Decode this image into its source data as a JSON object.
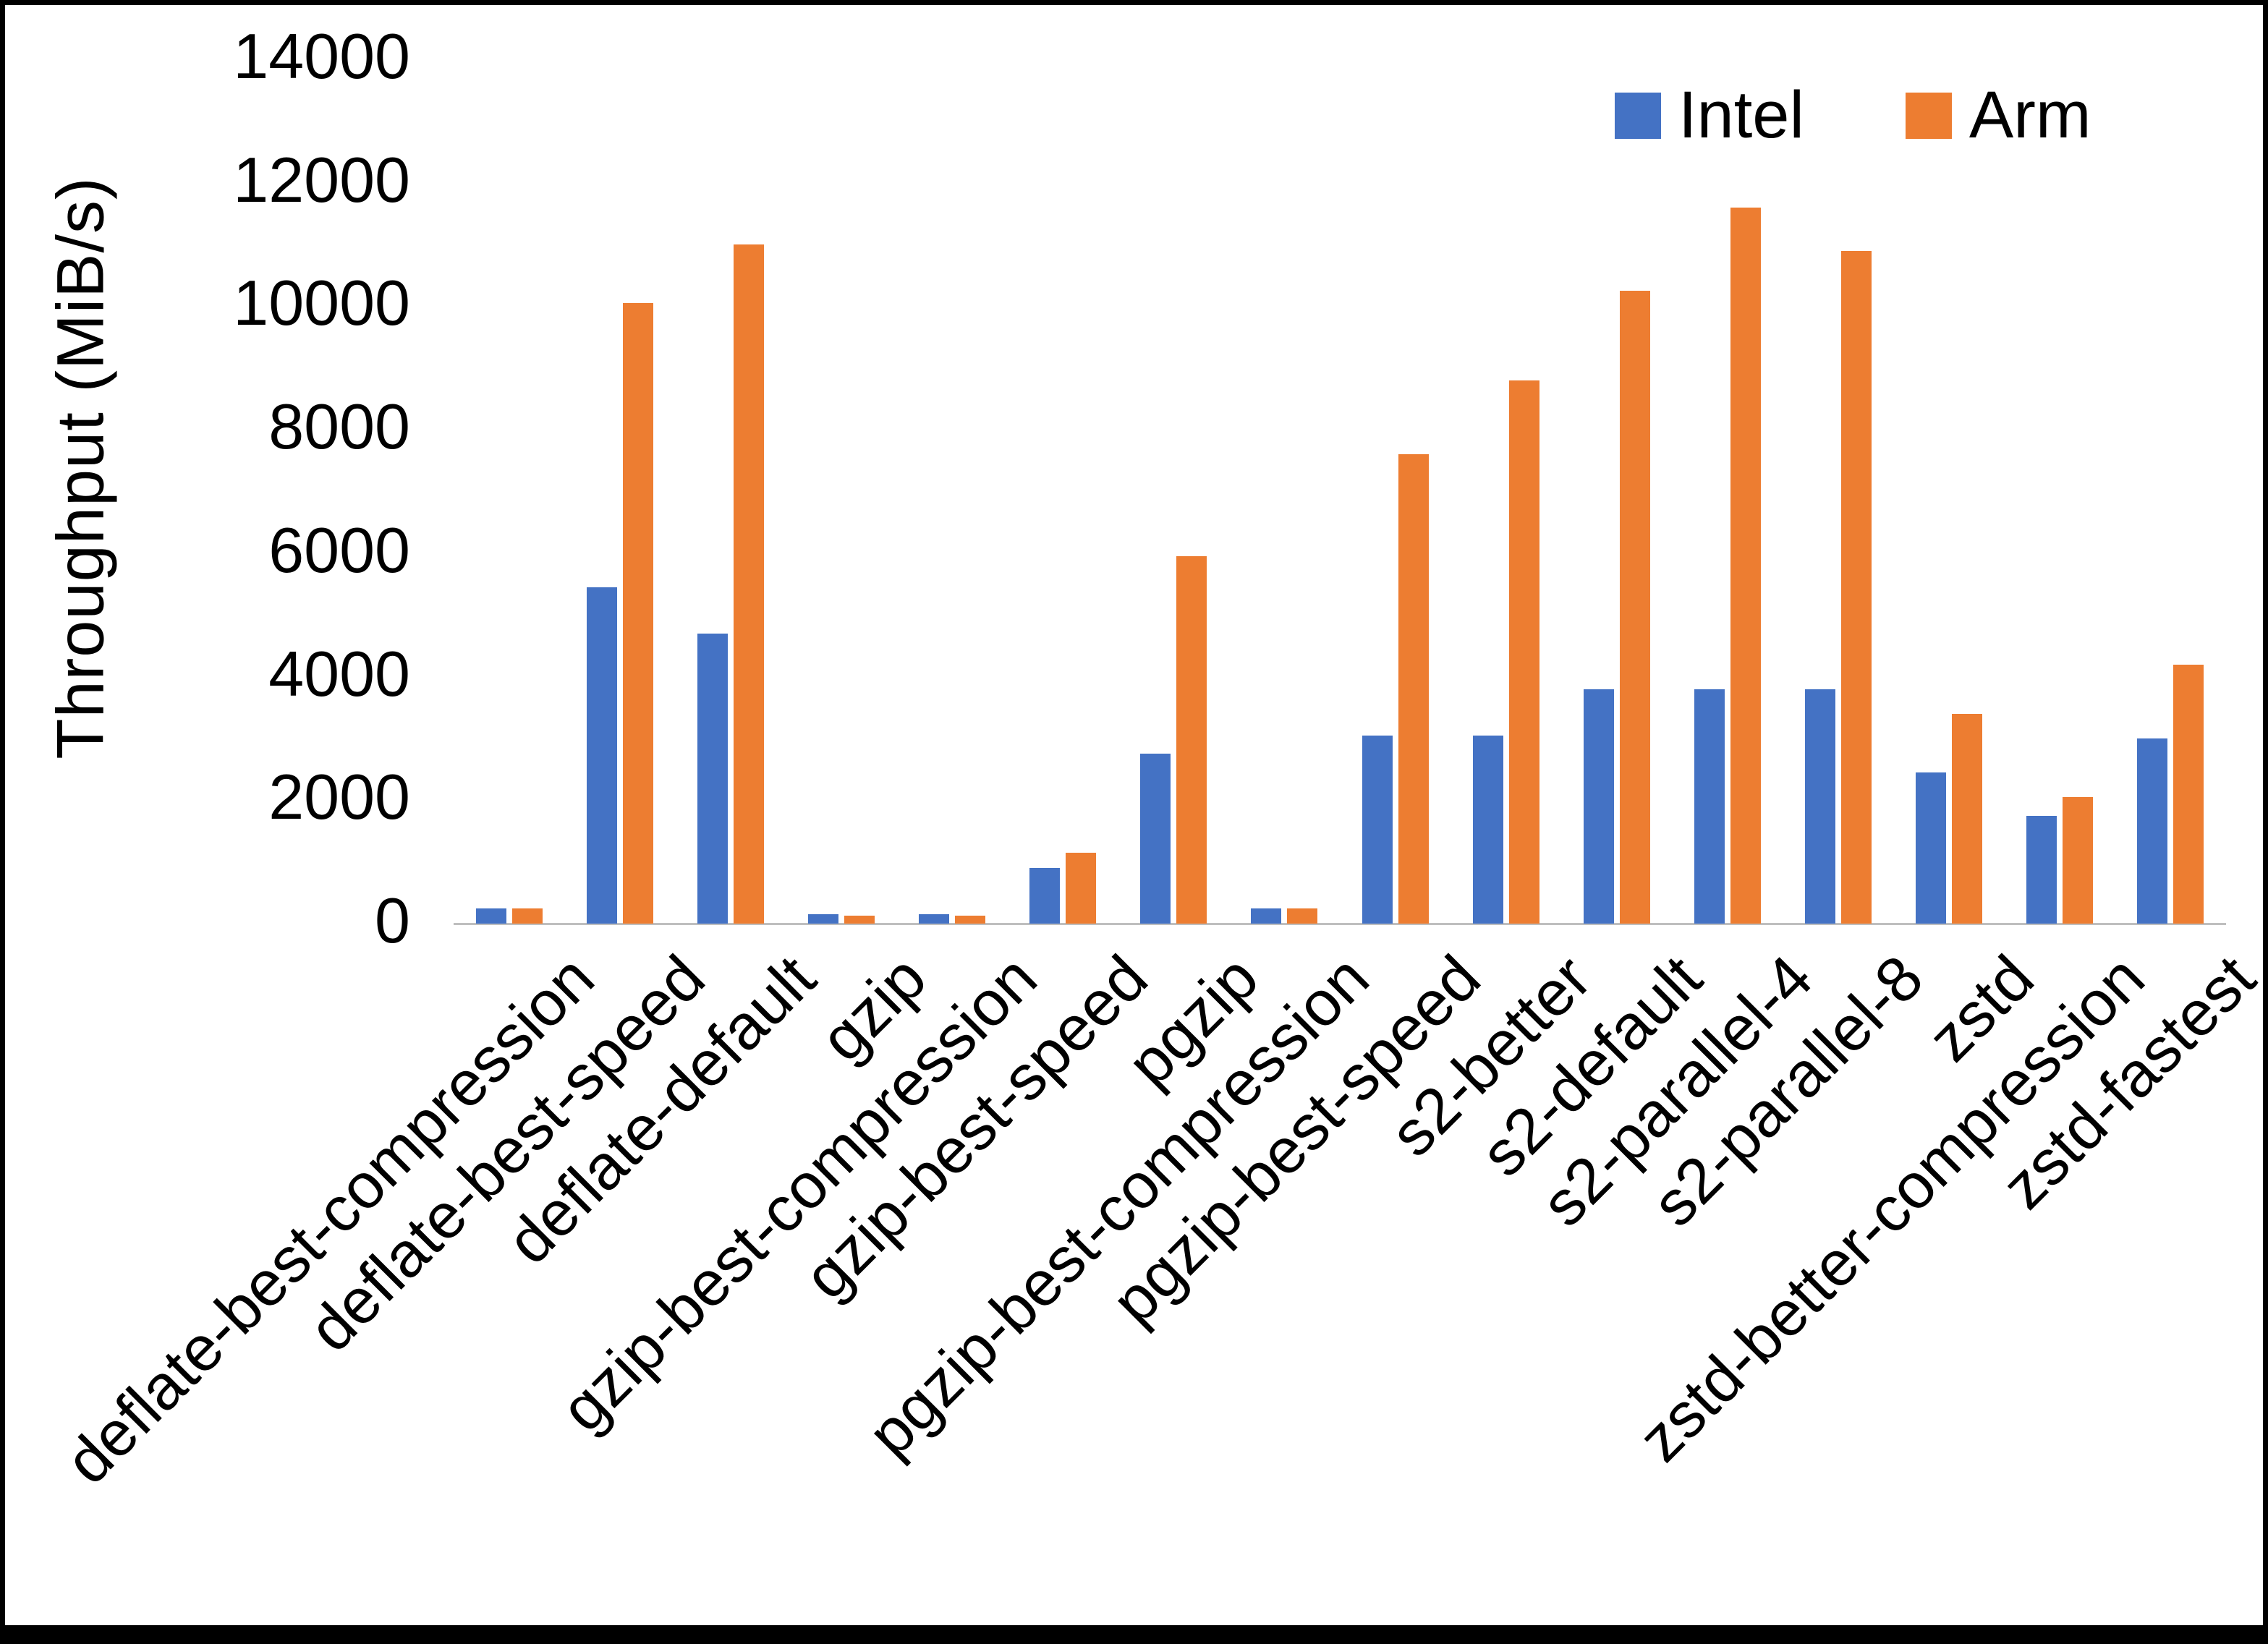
{
  "chart_data": {
    "type": "bar",
    "title": "",
    "xlabel": "",
    "ylabel": "Throughput (MiB/s)",
    "ylim": [
      0,
      14000
    ],
    "ytick_step": 2000,
    "grid": false,
    "legend_position": "top-right",
    "categories": [
      "deflate-best-compression",
      "deflate-best-speed",
      "deflate-default",
      "gzip",
      "gzip-best-compression",
      "gzip-best-speed",
      "pgzip",
      "pgzip-best-compression",
      "pgzip-best-speed",
      "s2-better",
      "s2-default",
      "s2-parallel-4",
      "s2-parallel-8",
      "zstd",
      "zstd-better-compression",
      "zstd-fastest"
    ],
    "series": [
      {
        "name": "Intel",
        "color": "#4472C4",
        "values": [
          250,
          5450,
          4700,
          150,
          150,
          900,
          2750,
          250,
          3050,
          3050,
          3800,
          3800,
          3800,
          2450,
          1750,
          3000
        ]
      },
      {
        "name": "Arm",
        "color": "#ED7D31",
        "values": [
          250,
          10050,
          11000,
          130,
          130,
          1150,
          5950,
          250,
          7600,
          8800,
          10250,
          11600,
          10900,
          3400,
          2050,
          4200
        ]
      }
    ]
  }
}
